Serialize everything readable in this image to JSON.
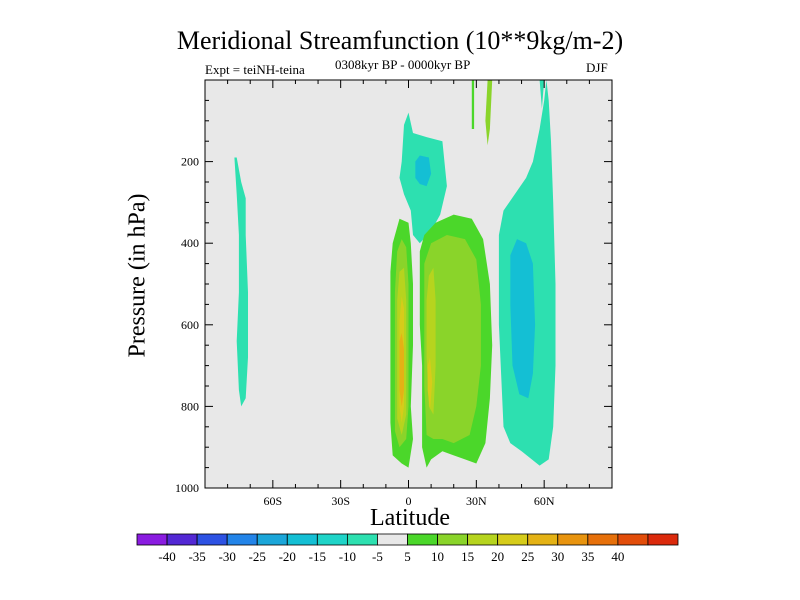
{
  "chart_data": {
    "type": "contour",
    "title": "Meridional Streamfunction (10**9kg/m-2)",
    "experiment": "Expt = teiNH-teina",
    "period": "0308kyr BP - 0000kyr BP",
    "season": "DJF",
    "xlabel": "Latitude",
    "ylabel": "Pressure (in hPa)",
    "xlim": [
      -90,
      90
    ],
    "ylim": [
      1000,
      0
    ],
    "x_ticks": [
      {
        "value": -60,
        "label": "60S"
      },
      {
        "value": -30,
        "label": "30S"
      },
      {
        "value": 0,
        "label": "0"
      },
      {
        "value": 30,
        "label": "30N"
      },
      {
        "value": 60,
        "label": "60N"
      }
    ],
    "y_ticks": [
      {
        "value": 200,
        "label": "200"
      },
      {
        "value": 400,
        "label": "400"
      },
      {
        "value": 600,
        "label": "600"
      },
      {
        "value": 800,
        "label": "800"
      },
      {
        "value": 1000,
        "label": "1000"
      }
    ],
    "levels": [
      -40,
      -35,
      -30,
      -25,
      -20,
      -15,
      -10,
      -5,
      5,
      10,
      15,
      20,
      25,
      30,
      35,
      40
    ],
    "level_labels": [
      "-40",
      "-35",
      "-30",
      "-25",
      "-20",
      "-15",
      "-10",
      "-5",
      "5",
      "10",
      "15",
      "20",
      "25",
      "30",
      "35",
      "40"
    ],
    "colors": [
      "#8a1ce0",
      "#5328d4",
      "#2d52e3",
      "#2384e8",
      "#1ba6d9",
      "#14bfd4",
      "#1fd4c8",
      "#2de0b0",
      "#e8e8e8",
      "#4bd72a",
      "#8ad42a",
      "#b6d41e",
      "#d6cc1a",
      "#e4b215",
      "#e8940f",
      "#e6700a",
      "#e24d0a",
      "#db2a0c"
    ],
    "regions": [
      {
        "name": "sh-band",
        "color": "#2de0b0",
        "points": [
          [
            -77,
            190
          ],
          [
            -76,
            280
          ],
          [
            -75,
            380
          ],
          [
            -75,
            520
          ],
          [
            -76,
            640
          ],
          [
            -75,
            760
          ],
          [
            -74,
            800
          ],
          [
            -72,
            780
          ],
          [
            -71,
            680
          ],
          [
            -71,
            520
          ],
          [
            -72,
            380
          ],
          [
            -72,
            290
          ],
          [
            -74,
            250
          ],
          [
            -76,
            190
          ]
        ]
      },
      {
        "name": "upper-tongue",
        "color": "#2de0b0",
        "points": [
          [
            -3,
            200
          ],
          [
            -2,
            110
          ],
          [
            0,
            80
          ],
          [
            2,
            130
          ],
          [
            8,
            140
          ],
          [
            15,
            150
          ],
          [
            17,
            260
          ],
          [
            14,
            330
          ],
          [
            10,
            370
          ],
          [
            5,
            400
          ],
          [
            2,
            380
          ],
          [
            1,
            320
          ],
          [
            -2,
            280
          ],
          [
            -4,
            240
          ]
        ]
      },
      {
        "name": "upper-core",
        "color": "#14bfd4",
        "points": [
          [
            3,
            200
          ],
          [
            5,
            185
          ],
          [
            9,
            190
          ],
          [
            10,
            230
          ],
          [
            8,
            260
          ],
          [
            5,
            255
          ],
          [
            3,
            240
          ]
        ]
      },
      {
        "name": "nh-cell",
        "color": "#2de0b0",
        "points": [
          [
            40,
            380
          ],
          [
            42,
            320
          ],
          [
            47,
            280
          ],
          [
            52,
            240
          ],
          [
            55,
            200
          ],
          [
            58,
            120
          ],
          [
            60,
            50
          ],
          [
            61,
            0
          ],
          [
            62,
            50
          ],
          [
            63,
            150
          ],
          [
            64,
            300
          ],
          [
            65,
            500
          ],
          [
            65,
            700
          ],
          [
            64,
            850
          ],
          [
            62,
            930
          ],
          [
            58,
            945
          ],
          [
            50,
            910
          ],
          [
            45,
            890
          ],
          [
            42,
            850
          ],
          [
            40,
            600
          ]
        ]
      },
      {
        "name": "nh-cell-core",
        "color": "#14bfd4",
        "points": [
          [
            45,
            430
          ],
          [
            48,
            390
          ],
          [
            52,
            400
          ],
          [
            55,
            450
          ],
          [
            56,
            600
          ],
          [
            55,
            720
          ],
          [
            53,
            780
          ],
          [
            49,
            770
          ],
          [
            46,
            700
          ],
          [
            45,
            550
          ]
        ]
      },
      {
        "name": "top-sliver-left",
        "color": "#4bd72a",
        "points": [
          [
            28,
            0
          ],
          [
            29,
            0
          ],
          [
            29,
            120
          ],
          [
            28,
            120
          ]
        ]
      },
      {
        "name": "top-sliver-mid",
        "color": "#8ad42a",
        "points": [
          [
            35,
            0
          ],
          [
            37,
            0
          ],
          [
            36,
            120
          ],
          [
            35,
            160
          ],
          [
            34,
            100
          ]
        ]
      },
      {
        "name": "top-sliver-right",
        "color": "#2de0b0",
        "points": [
          [
            58,
            0
          ],
          [
            60,
            0
          ],
          [
            59,
            70
          ]
        ]
      },
      {
        "name": "left-outer",
        "color": "#4bd72a",
        "points": [
          [
            -8,
            470
          ],
          [
            -7,
            400
          ],
          [
            -4,
            340
          ],
          [
            0,
            350
          ],
          [
            1,
            400
          ],
          [
            2,
            500
          ],
          [
            2,
            650
          ],
          [
            1,
            800
          ],
          [
            2,
            880
          ],
          [
            0,
            950
          ],
          [
            -3,
            940
          ],
          [
            -7,
            920
          ],
          [
            -8,
            840
          ],
          [
            -8,
            650
          ]
        ]
      },
      {
        "name": "left-10",
        "color": "#8ad42a",
        "points": [
          [
            -6,
            520
          ],
          [
            -5,
            420
          ],
          [
            -3,
            390
          ],
          [
            -1,
            410
          ],
          [
            0,
            500
          ],
          [
            0,
            650
          ],
          [
            0,
            800
          ],
          [
            -1,
            880
          ],
          [
            -4,
            900
          ],
          [
            -6,
            860
          ],
          [
            -6,
            700
          ]
        ]
      },
      {
        "name": "left-15",
        "color": "#b6d41e",
        "points": [
          [
            -5,
            540
          ],
          [
            -4,
            470
          ],
          [
            -2,
            460
          ],
          [
            -1,
            540
          ],
          [
            -1,
            700
          ],
          [
            -1,
            820
          ],
          [
            -3,
            870
          ],
          [
            -5,
            830
          ],
          [
            -5,
            700
          ]
        ]
      },
      {
        "name": "left-20",
        "color": "#d6cc1a",
        "points": [
          [
            -4,
            590
          ],
          [
            -3,
            530
          ],
          [
            -2,
            560
          ],
          [
            -2,
            700
          ],
          [
            -2,
            800
          ],
          [
            -3,
            840
          ],
          [
            -4,
            800
          ],
          [
            -4,
            700
          ]
        ]
      },
      {
        "name": "left-25",
        "color": "#e4b215",
        "points": [
          [
            -4,
            640
          ],
          [
            -3,
            620
          ],
          [
            -2,
            660
          ],
          [
            -2,
            760
          ],
          [
            -3,
            800
          ],
          [
            -4,
            760
          ]
        ]
      },
      {
        "name": "right-outer",
        "color": "#4bd72a",
        "points": [
          [
            5,
            420
          ],
          [
            7,
            380
          ],
          [
            12,
            350
          ],
          [
            20,
            330
          ],
          [
            28,
            340
          ],
          [
            33,
            390
          ],
          [
            36,
            500
          ],
          [
            37,
            650
          ],
          [
            36,
            780
          ],
          [
            34,
            890
          ],
          [
            30,
            940
          ],
          [
            25,
            930
          ],
          [
            20,
            920
          ],
          [
            15,
            910
          ],
          [
            10,
            930
          ],
          [
            8,
            950
          ],
          [
            6,
            900
          ],
          [
            6,
            700
          ],
          [
            5,
            600
          ]
        ]
      },
      {
        "name": "right-10",
        "color": "#8ad42a",
        "points": [
          [
            7,
            450
          ],
          [
            10,
            400
          ],
          [
            17,
            380
          ],
          [
            25,
            390
          ],
          [
            30,
            440
          ],
          [
            32,
            550
          ],
          [
            32,
            700
          ],
          [
            30,
            800
          ],
          [
            27,
            870
          ],
          [
            20,
            890
          ],
          [
            15,
            880
          ],
          [
            11,
            880
          ],
          [
            8,
            870
          ],
          [
            7,
            750
          ],
          [
            7,
            600
          ]
        ]
      },
      {
        "name": "right-15",
        "color": "#b6d41e",
        "points": [
          [
            8,
            540
          ],
          [
            9,
            480
          ],
          [
            11,
            460
          ],
          [
            12,
            540
          ],
          [
            12,
            700
          ],
          [
            11,
            820
          ],
          [
            9,
            800
          ],
          [
            8,
            680
          ]
        ]
      },
      {
        "name": "right-20",
        "color": "#d6cc1a",
        "points": [
          [
            8.5,
            700
          ],
          [
            9.5,
            680
          ],
          [
            10.5,
            740
          ],
          [
            9.5,
            810
          ],
          [
            8.5,
            760
          ]
        ]
      }
    ]
  }
}
